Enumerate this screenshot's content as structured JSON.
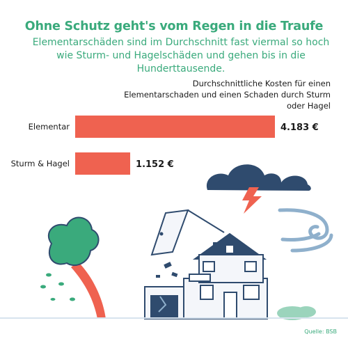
{
  "header": {
    "title": "Ohne Schutz geht's vom Regen in die Traufe",
    "subtitle": "Elementarschäden sind im Durchschnitt fast viermal so hoch wie Sturm- und Hagelschäden und gehen bis in die Hunderttausende."
  },
  "chart_caption": "Durchschnittliche Kosten für einen Elementarschaden und einen Schaden durch Sturm oder Hagel",
  "source": "Quelle: BSB",
  "colors": {
    "accent": "#3aaa7c",
    "bar": "#ef6250",
    "cloud": "#2f4b6e"
  },
  "chart_data": {
    "type": "bar",
    "orientation": "horizontal",
    "title": "Durchschnittliche Kosten für einen Elementarschaden und einen Schaden durch Sturm oder Hagel",
    "categories": [
      "Elementar",
      "Sturm & Hagel"
    ],
    "values": [
      4183,
      1152
    ],
    "value_labels": [
      "4.183 €",
      "1.152 €"
    ],
    "xlim": [
      0,
      4183
    ],
    "grid": false
  }
}
